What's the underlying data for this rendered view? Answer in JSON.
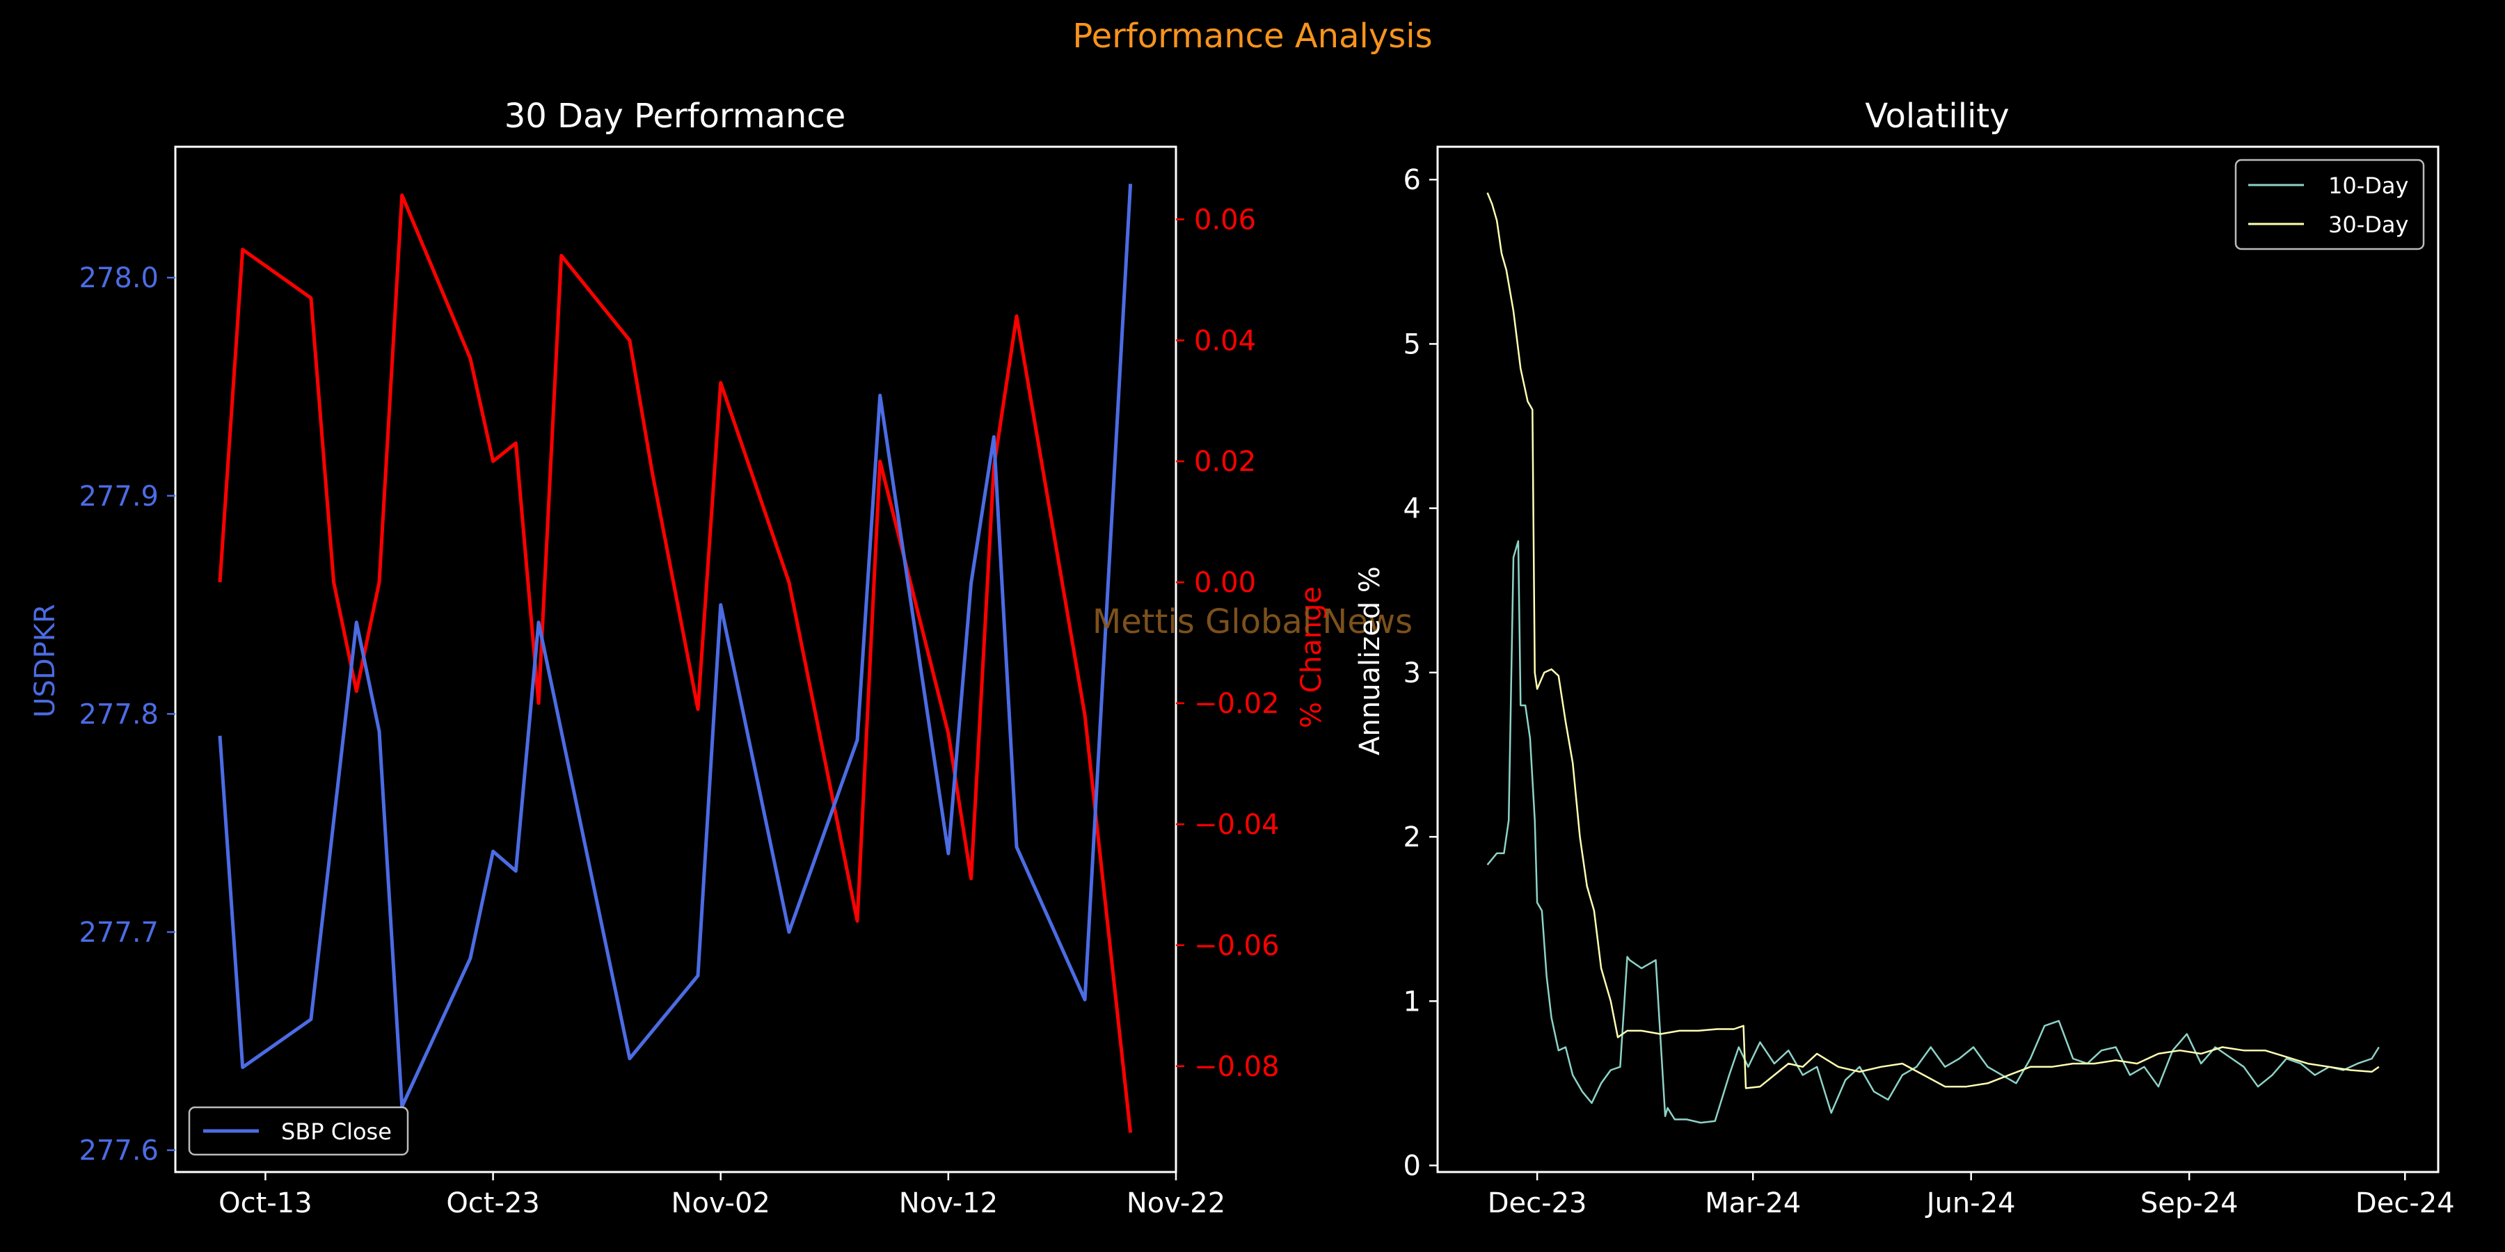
{
  "figure": {
    "suptitle": "Performance Analysis",
    "watermark": "Mettis Global News",
    "colors": {
      "background": "#000000",
      "suptitle": "#f7941d",
      "watermark": "#8a5a1e",
      "price": "#4c6ce4",
      "pct": "#ff0000",
      "vol10": "#8dd3c7",
      "vol30": "#ffffb3",
      "text": "#ffffff"
    }
  },
  "chart_data": [
    {
      "type": "line",
      "title": "30 Day Performance",
      "xlabel": "",
      "x_ticks": [
        "2024-10-13",
        "2024-10-23",
        "2024-11-02",
        "2024-11-12",
        "2024-11-22"
      ],
      "x_tick_labels": [
        "Oct-13",
        "Oct-23",
        "Nov-02",
        "Nov-12",
        "Nov-22"
      ],
      "xlim": [
        "2024-10-11",
        "2024-11-22"
      ],
      "grid": false,
      "legend": {
        "placement": "lower-left",
        "entries": [
          "SBP Close"
        ]
      },
      "y_left": {
        "label": "USDPKR",
        "lim": [
          277.59,
          278.06
        ],
        "ticks": [
          277.6,
          277.7,
          277.8,
          277.9,
          278.0
        ],
        "tick_labels": [
          "277.6",
          "277.7",
          "277.8",
          "277.9",
          "278.0"
        ]
      },
      "y_right": {
        "label": "% Change",
        "lim": [
          -0.0975,
          0.072
        ],
        "ticks": [
          -0.08,
          -0.06,
          -0.04,
          -0.02,
          0.0,
          0.02,
          0.04,
          0.06
        ],
        "tick_labels": [
          "−0.08",
          "−0.06",
          "−0.04",
          "−0.02",
          "0.00",
          "0.02",
          "0.04",
          "0.06"
        ]
      },
      "series": [
        {
          "name": "SBP Close",
          "axis": "left",
          "x": [
            "2024-10-11",
            "2024-10-12",
            "2024-10-15",
            "2024-10-17",
            "2024-10-18",
            "2024-10-19",
            "2024-10-22",
            "2024-10-23",
            "2024-10-24",
            "2024-10-25",
            "2024-10-29",
            "2024-11-01",
            "2024-11-02",
            "2024-11-05",
            "2024-11-08",
            "2024-11-09",
            "2024-11-12",
            "2024-11-13",
            "2024-11-14",
            "2024-11-15",
            "2024-11-18",
            "2024-11-20"
          ],
          "y": [
            277.79,
            277.638,
            277.66,
            277.842,
            277.792,
            277.62,
            277.688,
            277.737,
            277.728,
            277.842,
            277.642,
            277.68,
            277.85,
            277.7,
            277.788,
            277.946,
            277.736,
            277.86,
            277.927,
            277.739,
            277.669,
            278.043
          ]
        },
        {
          "name": "% Change",
          "axis": "right",
          "x": [
            "2024-10-11",
            "2024-10-12",
            "2024-10-15",
            "2024-10-16",
            "2024-10-17",
            "2024-10-18",
            "2024-10-19",
            "2024-10-22",
            "2024-10-23",
            "2024-10-24",
            "2024-10-25",
            "2024-10-26",
            "2024-10-29",
            "2024-10-30",
            "2024-11-01",
            "2024-11-02",
            "2024-11-05",
            "2024-11-08",
            "2024-11-09",
            "2024-11-12",
            "2024-11-13",
            "2024-11-14",
            "2024-11-15",
            "2024-11-18",
            "2024-11-20"
          ],
          "y": [
            0.0,
            0.055,
            0.047,
            0.0,
            -0.018,
            0.0,
            0.064,
            0.037,
            0.02,
            0.023,
            -0.02,
            0.054,
            0.04,
            0.018,
            -0.021,
            0.033,
            0.0,
            -0.056,
            0.02,
            -0.025,
            -0.049,
            0.019,
            0.044,
            -0.022,
            -0.091
          ]
        }
      ]
    },
    {
      "type": "line",
      "title": "Volatility",
      "xlabel": "",
      "ylabel": "Annualized %",
      "x_ticks": [
        "2023-12-01",
        "2024-03-01",
        "2024-06-01",
        "2024-09-01",
        "2024-12-01"
      ],
      "x_tick_labels": [
        "Dec-23",
        "Mar-24",
        "Jun-24",
        "Sep-24",
        "Dec-24"
      ],
      "xlim": [
        "2023-10-20",
        "2024-12-15"
      ],
      "ylim": [
        -0.04,
        6.2
      ],
      "y_ticks": [
        0,
        1,
        2,
        3,
        4,
        5,
        6
      ],
      "y_tick_labels": [
        "0",
        "1",
        "2",
        "3",
        "4",
        "5",
        "6"
      ],
      "grid": false,
      "legend": {
        "placement": "top-right",
        "entries": [
          "10-Day",
          "30-Day"
        ]
      },
      "series": [
        {
          "name": "10-Day",
          "x": [
            "2023-11-10",
            "2023-11-14",
            "2023-11-17",
            "2023-11-19",
            "2023-11-21",
            "2023-11-23",
            "2023-11-24",
            "2023-11-26",
            "2023-11-28",
            "2023-11-30",
            "2023-12-01",
            "2023-12-03",
            "2023-12-05",
            "2023-12-07",
            "2023-12-10",
            "2023-12-13",
            "2023-12-16",
            "2023-12-20",
            "2023-12-24",
            "2023-12-28",
            "2024-01-01",
            "2024-01-05",
            "2024-01-08",
            "2024-01-09",
            "2024-01-14",
            "2024-01-20",
            "2024-01-24",
            "2024-01-25",
            "2024-01-28",
            "2024-02-02",
            "2024-02-08",
            "2024-02-14",
            "2024-02-20",
            "2024-02-24",
            "2024-02-28",
            "2024-03-04",
            "2024-03-10",
            "2024-03-16",
            "2024-03-22",
            "2024-03-28",
            "2024-04-03",
            "2024-04-09",
            "2024-04-15",
            "2024-04-21",
            "2024-04-27",
            "2024-05-03",
            "2024-05-09",
            "2024-05-15",
            "2024-05-21",
            "2024-05-27",
            "2024-06-02",
            "2024-06-08",
            "2024-06-14",
            "2024-06-20",
            "2024-06-26",
            "2024-07-02",
            "2024-07-08",
            "2024-07-14",
            "2024-07-20",
            "2024-07-26",
            "2024-08-01",
            "2024-08-07",
            "2024-08-13",
            "2024-08-19",
            "2024-08-25",
            "2024-08-31",
            "2024-09-06",
            "2024-09-12",
            "2024-09-18",
            "2024-09-24",
            "2024-09-30",
            "2024-10-06",
            "2024-10-12",
            "2024-10-18",
            "2024-10-24",
            "2024-10-30",
            "2024-11-05",
            "2024-11-11",
            "2024-11-17",
            "2024-11-20"
          ],
          "y": [
            1.83,
            1.9,
            1.9,
            2.1,
            3.7,
            3.8,
            2.8,
            2.8,
            2.6,
            2.1,
            1.6,
            1.55,
            1.15,
            0.9,
            0.7,
            0.72,
            0.55,
            0.45,
            0.38,
            0.5,
            0.58,
            0.6,
            1.27,
            1.25,
            1.2,
            1.25,
            0.3,
            0.35,
            0.28,
            0.28,
            0.26,
            0.27,
            0.55,
            0.72,
            0.6,
            0.75,
            0.62,
            0.7,
            0.55,
            0.6,
            0.32,
            0.52,
            0.6,
            0.45,
            0.4,
            0.55,
            0.6,
            0.72,
            0.6,
            0.65,
            0.72,
            0.6,
            0.55,
            0.5,
            0.65,
            0.85,
            0.88,
            0.65,
            0.62,
            0.7,
            0.72,
            0.55,
            0.6,
            0.48,
            0.7,
            0.8,
            0.62,
            0.72,
            0.66,
            0.6,
            0.48,
            0.55,
            0.65,
            0.62,
            0.55,
            0.6,
            0.58,
            0.62,
            0.65,
            0.72
          ]
        },
        {
          "name": "30-Day",
          "x": [
            "2023-11-10",
            "2023-11-12",
            "2023-11-14",
            "2023-11-16",
            "2023-11-18",
            "2023-11-21",
            "2023-11-24",
            "2023-11-27",
            "2023-11-29",
            "2023-11-30",
            "2023-12-01",
            "2023-12-04",
            "2023-12-07",
            "2023-12-10",
            "2023-12-13",
            "2023-12-16",
            "2023-12-19",
            "2023-12-22",
            "2023-12-25",
            "2023-12-28",
            "2024-01-01",
            "2024-01-04",
            "2024-01-08",
            "2024-01-14",
            "2024-01-22",
            "2024-01-30",
            "2024-02-07",
            "2024-02-15",
            "2024-02-22",
            "2024-02-26",
            "2024-02-27",
            "2024-03-04",
            "2024-03-10",
            "2024-03-16",
            "2024-03-22",
            "2024-03-28",
            "2024-04-06",
            "2024-04-15",
            "2024-04-24",
            "2024-05-03",
            "2024-05-12",
            "2024-05-21",
            "2024-05-30",
            "2024-06-08",
            "2024-06-17",
            "2024-06-26",
            "2024-07-05",
            "2024-07-14",
            "2024-07-23",
            "2024-08-01",
            "2024-08-10",
            "2024-08-19",
            "2024-08-28",
            "2024-09-06",
            "2024-09-15",
            "2024-09-24",
            "2024-10-03",
            "2024-10-12",
            "2024-10-21",
            "2024-10-30",
            "2024-11-08",
            "2024-11-17",
            "2024-11-20"
          ],
          "y": [
            5.92,
            5.85,
            5.75,
            5.55,
            5.45,
            5.2,
            4.85,
            4.65,
            4.6,
            3.0,
            2.9,
            3.0,
            3.02,
            2.98,
            2.7,
            2.45,
            2.0,
            1.7,
            1.55,
            1.2,
            1.0,
            0.78,
            0.82,
            0.82,
            0.8,
            0.82,
            0.82,
            0.83,
            0.83,
            0.85,
            0.47,
            0.48,
            0.55,
            0.62,
            0.6,
            0.68,
            0.6,
            0.57,
            0.6,
            0.62,
            0.55,
            0.48,
            0.48,
            0.5,
            0.55,
            0.6,
            0.6,
            0.62,
            0.62,
            0.64,
            0.62,
            0.68,
            0.7,
            0.68,
            0.72,
            0.7,
            0.7,
            0.66,
            0.62,
            0.6,
            0.58,
            0.57,
            0.6
          ]
        }
      ]
    }
  ]
}
